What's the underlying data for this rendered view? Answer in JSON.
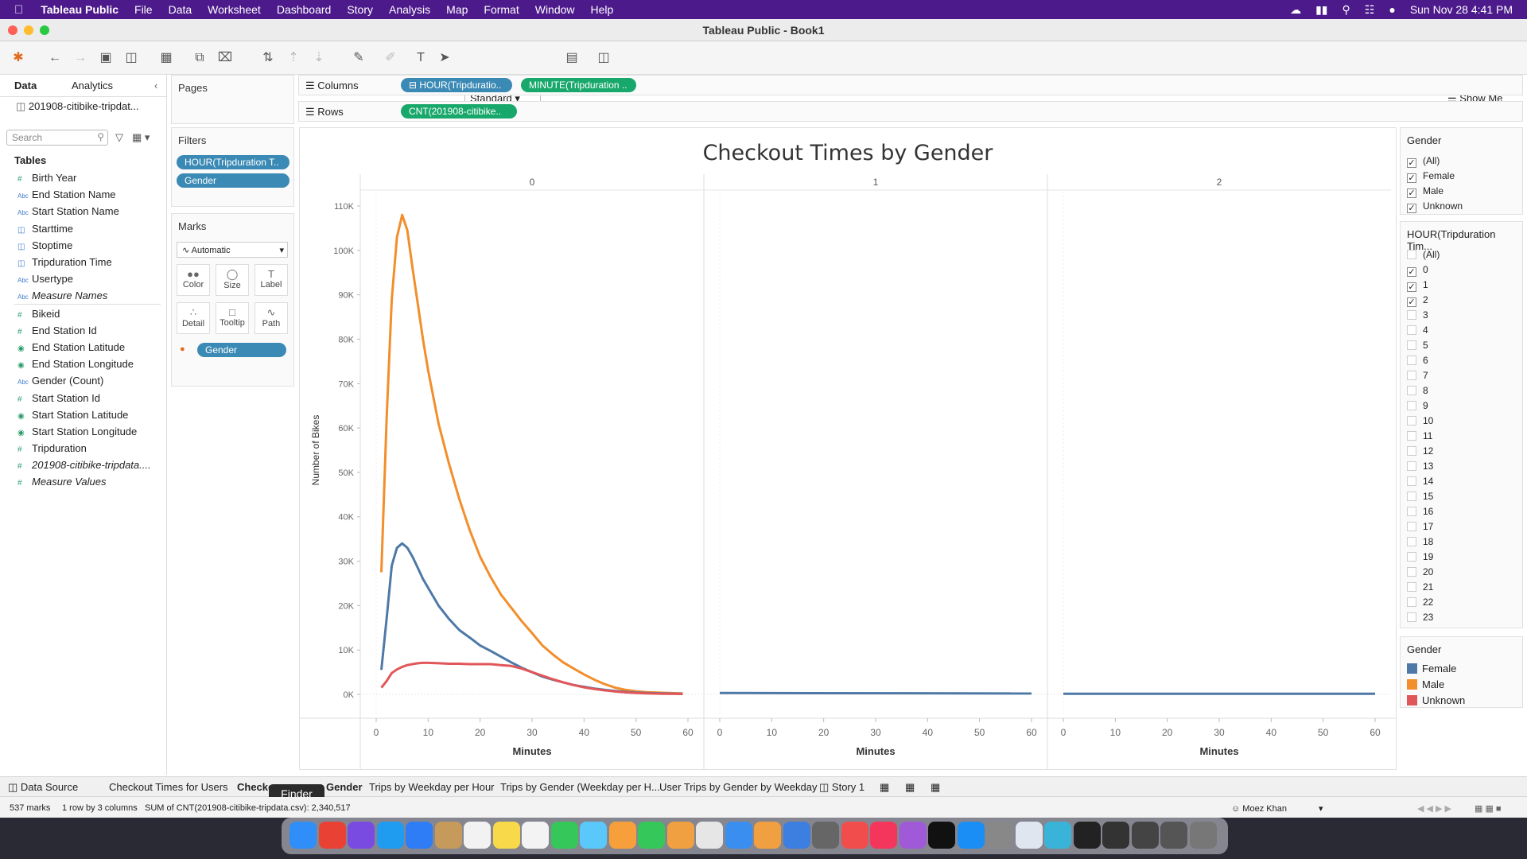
{
  "menubar": {
    "apple": "",
    "app": "Tableau Public",
    "items": [
      "File",
      "Data",
      "Worksheet",
      "Dashboard",
      "Story",
      "Analysis",
      "Map",
      "Format",
      "Window",
      "Help"
    ],
    "clock": "Sun Nov 28  4:41 PM"
  },
  "window": {
    "title": "Tableau Public - Book1"
  },
  "toolbar": {
    "mark_type": "Standard",
    "show_me": "Show Me"
  },
  "sidebar": {
    "tab_data": "Data",
    "tab_analytics": "Analytics",
    "source": "201908-citibike-tripdat...",
    "search_placeholder": "Search",
    "tables_heading": "Tables",
    "dimensions": [
      {
        "label": "Birth Year",
        "type": "num"
      },
      {
        "label": "End Station Name",
        "type": "abc"
      },
      {
        "label": "Start Station Name",
        "type": "abc"
      },
      {
        "label": "Starttime",
        "type": "date"
      },
      {
        "label": "Stoptime",
        "type": "date"
      },
      {
        "label": "Tripduration Time",
        "type": "date"
      },
      {
        "label": "Usertype",
        "type": "abc"
      },
      {
        "label": "Measure Names",
        "type": "abc"
      }
    ],
    "measures": [
      {
        "label": "Bikeid",
        "type": "num"
      },
      {
        "label": "End Station Id",
        "type": "num"
      },
      {
        "label": "End Station Latitude",
        "type": "geo"
      },
      {
        "label": "End Station Longitude",
        "type": "geo"
      },
      {
        "label": "Gender (Count)",
        "type": "abc"
      },
      {
        "label": "Start Station Id",
        "type": "num"
      },
      {
        "label": "Start Station Latitude",
        "type": "geo"
      },
      {
        "label": "Start Station Longitude",
        "type": "geo"
      },
      {
        "label": "Tripduration",
        "type": "num"
      },
      {
        "label": "201908-citibike-tripdata....",
        "type": "num"
      },
      {
        "label": "Measure Values",
        "type": "num"
      }
    ]
  },
  "pages": {
    "label": "Pages"
  },
  "filters": {
    "label": "Filters",
    "pills": [
      "HOUR(Tripduration T..",
      "Gender"
    ]
  },
  "marks": {
    "label": "Marks",
    "type": "Automatic",
    "buttons": [
      "Color",
      "Size",
      "Label",
      "Detail",
      "Tooltip",
      "Path"
    ],
    "pill": "Gender"
  },
  "shelves": {
    "columns_label": "Columns",
    "columns_pills": [
      "HOUR(Tripduratio..",
      "MINUTE(Tripduration .."
    ],
    "rows_label": "Rows",
    "rows_pills": [
      "CNT(201908-citibike.."
    ]
  },
  "chart_data": {
    "type": "line",
    "title": "Checkout Times by Gender",
    "ylabel": "Number of Bikes",
    "xlabel": "Minutes",
    "panels": [
      "0",
      "1",
      "2"
    ],
    "x_ticks": [
      0,
      10,
      20,
      30,
      40,
      50,
      60
    ],
    "ylim": [
      0,
      115000
    ],
    "y_ticks": [
      0,
      10000,
      20000,
      30000,
      40000,
      50000,
      60000,
      70000,
      80000,
      90000,
      100000,
      110000
    ],
    "y_tick_labels": [
      "0K",
      "10K",
      "20K",
      "30K",
      "40K",
      "50K",
      "60K",
      "70K",
      "80K",
      "90K",
      "100K",
      "110K"
    ],
    "x": [
      1,
      2,
      3,
      4,
      5,
      6,
      7,
      8,
      9,
      10,
      12,
      14,
      16,
      18,
      20,
      22,
      24,
      26,
      28,
      30,
      32,
      34,
      36,
      38,
      40,
      42,
      44,
      46,
      48,
      50,
      52,
      55,
      58,
      59
    ],
    "series": [
      {
        "name": "Male",
        "color": "#f28e2b",
        "panel": "0",
        "values": [
          27500,
          62000,
          89000,
          103000,
          108000,
          104500,
          96000,
          88000,
          80000,
          73000,
          61000,
          52000,
          44000,
          37000,
          31000,
          26500,
          22500,
          19500,
          16500,
          13800,
          11000,
          9000,
          7200,
          5800,
          4500,
          3300,
          2300,
          1500,
          1000,
          700,
          500,
          350,
          250,
          200
        ]
      },
      {
        "name": "Female",
        "color": "#4e79a7",
        "panel": "0",
        "values": [
          5500,
          17000,
          29000,
          33000,
          34000,
          33000,
          31000,
          28500,
          26000,
          24000,
          20000,
          17000,
          14500,
          12800,
          11000,
          9800,
          8500,
          7200,
          6000,
          5000,
          4000,
          3300,
          2700,
          2100,
          1700,
          1300,
          1000,
          750,
          550,
          400,
          300,
          220,
          160,
          130
        ]
      },
      {
        "name": "Unknown",
        "color": "#e15759",
        "panel": "0",
        "values": [
          1500,
          3000,
          4800,
          5600,
          6200,
          6600,
          6800,
          7000,
          7100,
          7100,
          7000,
          6900,
          6900,
          6800,
          6800,
          6800,
          6600,
          6400,
          5800,
          5000,
          4200,
          3400,
          2700,
          2100,
          1600,
          1200,
          900,
          650,
          450,
          300,
          220,
          150,
          110,
          90
        ]
      },
      {
        "name": "Female",
        "color": "#4e79a7",
        "panel": "1",
        "x": [
          0,
          60
        ],
        "values": [
          300,
          200
        ]
      },
      {
        "name": "Female",
        "color": "#4e79a7",
        "panel": "2",
        "x": [
          0,
          60
        ],
        "values": [
          150,
          120
        ]
      }
    ],
    "legend": "right"
  },
  "gender_filter": {
    "title": "Gender",
    "items": [
      {
        "label": "(All)",
        "checked": true
      },
      {
        "label": "Female",
        "checked": true
      },
      {
        "label": "Male",
        "checked": true
      },
      {
        "label": "Unknown",
        "checked": true
      }
    ]
  },
  "hour_filter": {
    "title": "HOUR(Tripduration Tim...",
    "items": [
      {
        "label": "(All)",
        "checked": false
      },
      {
        "label": "0",
        "checked": true
      },
      {
        "label": "1",
        "checked": true
      },
      {
        "label": "2",
        "checked": true
      },
      {
        "label": "3",
        "checked": false
      },
      {
        "label": "4",
        "checked": false
      },
      {
        "label": "5",
        "checked": false
      },
      {
        "label": "6",
        "checked": false
      },
      {
        "label": "7",
        "checked": false
      },
      {
        "label": "8",
        "checked": false
      },
      {
        "label": "9",
        "checked": false
      },
      {
        "label": "10",
        "checked": false
      },
      {
        "label": "11",
        "checked": false
      },
      {
        "label": "12",
        "checked": false
      },
      {
        "label": "13",
        "checked": false
      },
      {
        "label": "14",
        "checked": false
      },
      {
        "label": "15",
        "checked": false
      },
      {
        "label": "16",
        "checked": false
      },
      {
        "label": "17",
        "checked": false
      },
      {
        "label": "18",
        "checked": false
      },
      {
        "label": "19",
        "checked": false
      },
      {
        "label": "20",
        "checked": false
      },
      {
        "label": "21",
        "checked": false
      },
      {
        "label": "22",
        "checked": false
      },
      {
        "label": "23",
        "checked": false
      }
    ]
  },
  "legend": {
    "title": "Gender",
    "items": [
      {
        "label": "Female",
        "color": "#4e79a7"
      },
      {
        "label": "Male",
        "color": "#f28e2b"
      },
      {
        "label": "Unknown",
        "color": "#e15759"
      }
    ]
  },
  "sheet_tabs": {
    "data_source": "Data Source",
    "tabs": [
      "Checkout Times for Users",
      "Checko",
      "Gender",
      "Trips by Weekday per Hour",
      "Trips by Gender (Weekday per H...",
      "User Trips by Gender by Weekday",
      "Story 1"
    ]
  },
  "tooltip": "Finder",
  "status": {
    "marks": "537 marks",
    "layout": "1 row by 3 columns",
    "sum": "SUM of CNT(201908-citibike-tripdata.csv): 2,340,517",
    "user": "Moez Khan"
  }
}
